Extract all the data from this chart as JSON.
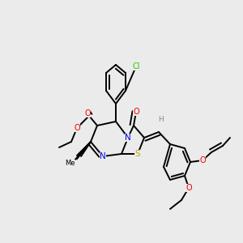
{
  "bg": "#ebebeb",
  "figsize": [
    3.0,
    3.0
  ],
  "dpi": 100,
  "colors": {
    "C": "#000000",
    "N": "#0000ee",
    "O": "#ee0000",
    "S": "#bbaa00",
    "Cl": "#22cc00",
    "H": "#888888",
    "bond": "#000000"
  },
  "lw": 1.4
}
